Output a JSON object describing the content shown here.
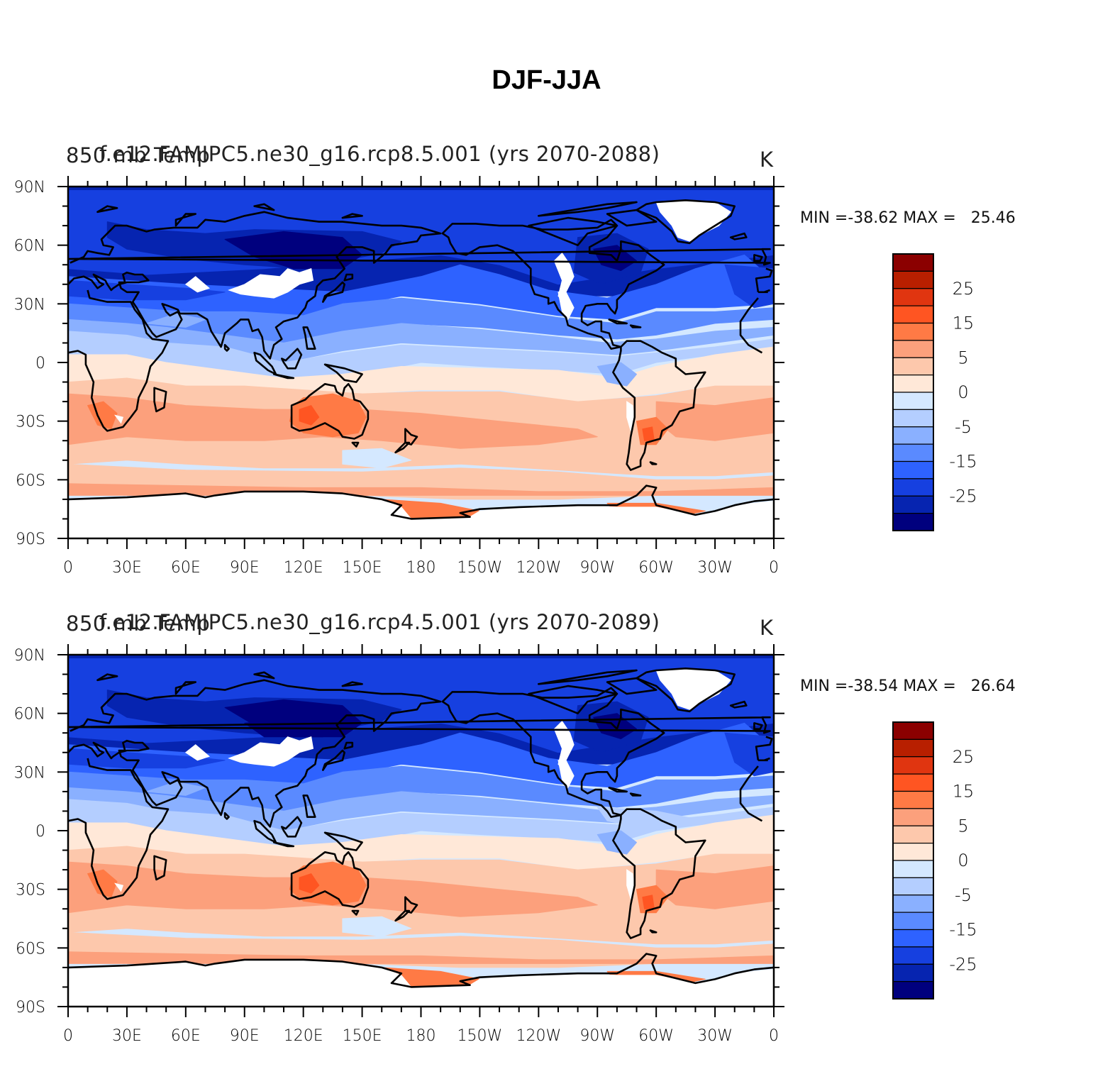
{
  "title": "DJF-JJA",
  "panels": [
    {
      "left_label": "850 mb Temp",
      "case_label": "f.e12.FAMIPC5.ne30_g16.rcp8.5.001 (yrs 2070-2088)",
      "units": "K",
      "min_label": "MIN =",
      "min_value": "-38.62",
      "max_label": "MAX =",
      "max_value": "25.46"
    },
    {
      "left_label": "850 mb Temp",
      "case_label": "f.e12.FAMIPC5.ne30_g16.rcp4.5.001 (yrs 2070-2089)",
      "units": "K",
      "min_label": "MIN =",
      "min_value": "-38.54",
      "max_label": "MAX =",
      "max_value": "26.64"
    }
  ],
  "lon_ticks": [
    "0",
    "30E",
    "60E",
    "90E",
    "120E",
    "150E",
    "180",
    "150W",
    "120W",
    "90W",
    "60W",
    "30W",
    "0"
  ],
  "lat_ticks": [
    "90N",
    "60N",
    "30N",
    "0",
    "30S",
    "60S",
    "90S"
  ],
  "colorbar": {
    "labels": [
      "25",
      "15",
      "5",
      "0",
      "-5",
      "-15",
      "-25"
    ],
    "colors": [
      "#8b0000",
      "#b81f00",
      "#e03510",
      "#ff5522",
      "#ff7a45",
      "#fca07c",
      "#fdc8ac",
      "#ffe8d8",
      "#d4e8ff",
      "#b4ceff",
      "#8ab0ff",
      "#5a8aff",
      "#2e62ff",
      "#1640e0",
      "#0624b0",
      "#00007e"
    ]
  }
}
